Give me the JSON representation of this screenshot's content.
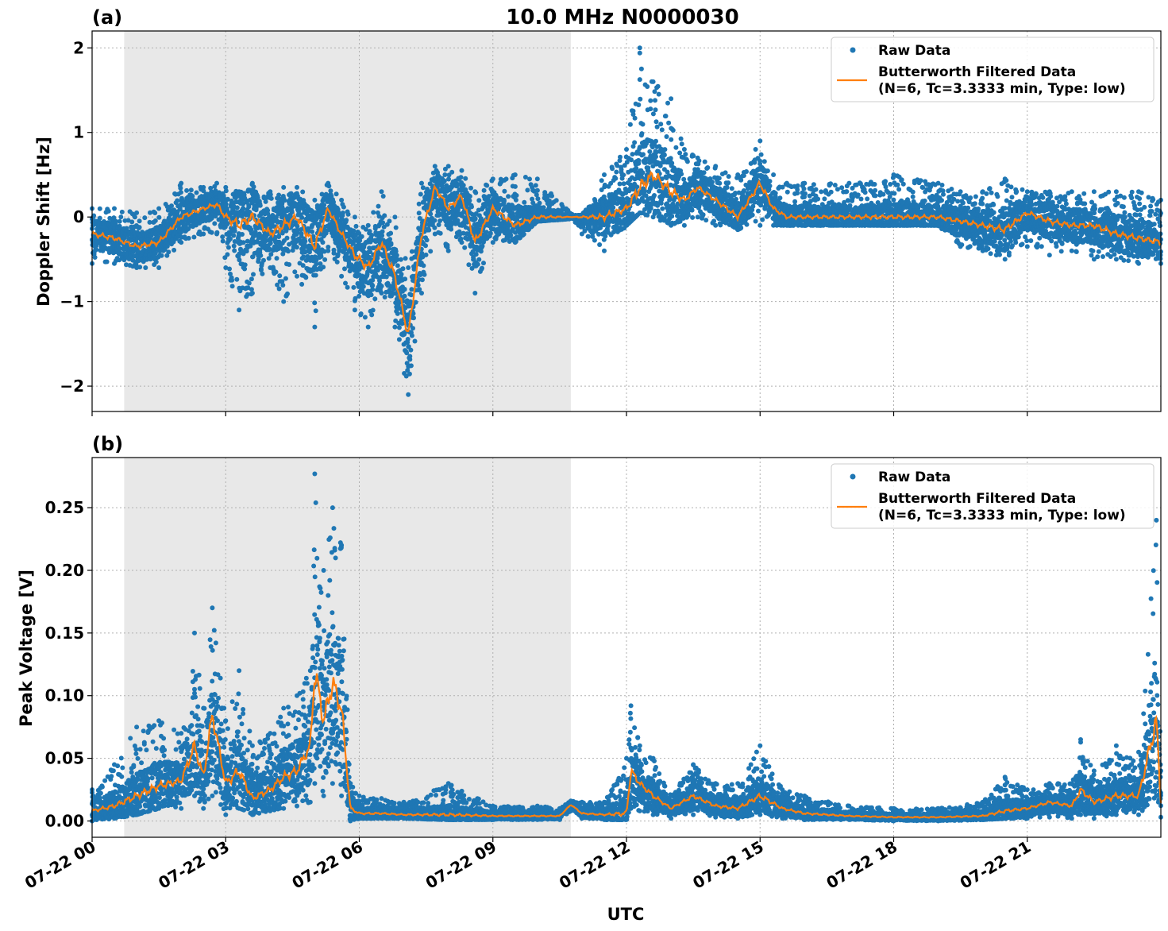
{
  "figure": {
    "title": "10.0 MHz N0000030",
    "xlabel": "UTC",
    "shaded_interval_hours": [
      0.72,
      10.75
    ]
  },
  "legend": {
    "raw_label": "Raw Data",
    "filtered_label_line1": "Butterworth Filtered Data",
    "filtered_label_line2": "(N=6, Tc=3.3333 min, Type: low)"
  },
  "colors": {
    "raw": "#1f77b4",
    "filtered": "#ff7f0e",
    "shade": "#e8e8e8",
    "grid": "#b0b0b0"
  },
  "chart_data": [
    {
      "type": "scatter",
      "panel_label": "(a)",
      "ylabel": "Doppler Shift [Hz]",
      "xlim_hours": [
        0,
        24
      ],
      "ylim": [
        -2.3,
        2.2
      ],
      "yticks": [
        2,
        1,
        0,
        -1,
        -2
      ],
      "ytick_labels": [
        "2",
        "1",
        "0",
        "−1",
        "−2"
      ],
      "grid": true,
      "legend_position": "top-right",
      "series": [
        {
          "name": "Raw Data",
          "style": "points"
        },
        {
          "name": "Butterworth Filtered Data (N=6, Tc=3.3333 min, Type: low)",
          "style": "line",
          "x": [
            0,
            0.5,
            1,
            1.5,
            2,
            2.5,
            2.8,
            3,
            3.3,
            3.6,
            4,
            4.3,
            4.6,
            5,
            5.3,
            5.6,
            5.9,
            6.2,
            6.5,
            6.8,
            7.1,
            7.4,
            7.7,
            8,
            8.3,
            8.6,
            9,
            9.5,
            10,
            10.8,
            11.5,
            12,
            12.3,
            12.6,
            13,
            13.3,
            13.6,
            14,
            14.5,
            15,
            15.3,
            15.6,
            16,
            17,
            18,
            19,
            19.5,
            20,
            20.5,
            21,
            21.5,
            22,
            22.5,
            23,
            23.5,
            24
          ],
          "y": [
            -0.2,
            -0.25,
            -0.35,
            -0.3,
            0.0,
            0.1,
            0.15,
            0.0,
            -0.1,
            0.0,
            -0.2,
            -0.1,
            0.0,
            -0.35,
            0.1,
            -0.2,
            -0.45,
            -0.6,
            -0.3,
            -0.7,
            -1.4,
            -0.2,
            0.35,
            0.1,
            0.25,
            -0.3,
            0.1,
            -0.1,
            0.0,
            0.0,
            0.0,
            0.1,
            0.35,
            0.5,
            0.3,
            0.2,
            0.35,
            0.2,
            0.0,
            0.4,
            0.1,
            0.0,
            0.0,
            0.0,
            0.0,
            0.0,
            -0.05,
            -0.1,
            -0.15,
            0.05,
            -0.05,
            -0.1,
            -0.1,
            -0.2,
            -0.25,
            -0.3
          ]
        }
      ],
      "raw_spread": {
        "x": [
          0,
          0.5,
          1,
          1.5,
          2,
          2.5,
          2.8,
          3,
          3.3,
          3.6,
          4,
          4.3,
          4.6,
          5,
          5.3,
          5.6,
          5.9,
          6.2,
          6.5,
          6.8,
          7.1,
          7.4,
          7.7,
          8,
          8.3,
          8.6,
          9,
          9.5,
          10,
          10.8,
          11,
          11.5,
          12,
          12.3,
          12.6,
          13,
          13.3,
          13.6,
          14,
          14.5,
          14.9,
          15,
          15.3,
          15.6,
          16,
          17,
          18,
          19,
          19.5,
          20,
          20.5,
          21,
          21.5,
          22,
          22.5,
          23,
          23.5,
          24
        ],
        "low": [
          -0.55,
          -0.55,
          -0.6,
          -0.6,
          -0.3,
          -0.2,
          -0.2,
          -0.6,
          -1.1,
          -0.9,
          -0.6,
          -1.0,
          -0.7,
          -1.3,
          -0.4,
          -0.7,
          -1.1,
          -1.3,
          -0.9,
          -1.3,
          -2.1,
          -0.9,
          -0.2,
          -0.4,
          -0.3,
          -0.9,
          -0.3,
          -0.3,
          -0.05,
          -0.02,
          -0.2,
          -0.4,
          -0.1,
          0.05,
          0.0,
          -0.1,
          -0.1,
          0.0,
          -0.1,
          -0.15,
          -0.05,
          -0.1,
          -0.1,
          -0.1,
          -0.1,
          -0.1,
          -0.1,
          -0.1,
          -0.35,
          -0.4,
          -0.5,
          -0.35,
          -0.45,
          -0.4,
          -0.5,
          -0.5,
          -0.55,
          -0.55
        ],
        "high": [
          0.1,
          0.1,
          0.05,
          0.1,
          0.4,
          0.35,
          0.4,
          0.35,
          0.3,
          0.4,
          0.3,
          0.35,
          0.35,
          0.2,
          0.4,
          0.2,
          0.0,
          -0.1,
          0.3,
          0.0,
          -0.6,
          0.4,
          0.6,
          0.6,
          0.55,
          0.3,
          0.45,
          0.5,
          0.45,
          0.02,
          0.02,
          0.5,
          0.8,
          2.0,
          1.6,
          1.4,
          0.8,
          0.7,
          0.6,
          0.5,
          0.8,
          0.9,
          0.5,
          0.4,
          0.4,
          0.4,
          0.5,
          0.4,
          0.3,
          0.3,
          0.45,
          0.3,
          0.3,
          0.3,
          0.3,
          0.3,
          0.3,
          0.2
        ]
      }
    },
    {
      "type": "scatter",
      "panel_label": "(b)",
      "ylabel": "Peak Voltage [V]",
      "xlim_hours": [
        0,
        24
      ],
      "ylim": [
        -0.013,
        0.29
      ],
      "yticks": [
        0.25,
        0.2,
        0.15,
        0.1,
        0.05,
        0.0
      ],
      "ytick_labels": [
        "0.25",
        "0.20",
        "0.15",
        "0.10",
        "0.05",
        "0.00"
      ],
      "grid": true,
      "legend_position": "top-right",
      "series": [
        {
          "name": "Raw Data",
          "style": "points"
        },
        {
          "name": "Butterworth Filtered Data (N=6, Tc=3.3333 min, Type: low)",
          "style": "line",
          "x": [
            0,
            0.5,
            1,
            1.5,
            2,
            2.3,
            2.5,
            2.7,
            3,
            3.3,
            3.6,
            4,
            4.3,
            4.6,
            4.9,
            5,
            5.2,
            5.4,
            5.6,
            5.8,
            6,
            6.5,
            7,
            8,
            9,
            10,
            10.5,
            10.75,
            11,
            11.5,
            12,
            12.1,
            12.3,
            12.6,
            13,
            13.5,
            14,
            14.5,
            15,
            15.5,
            16,
            17,
            18,
            19,
            20,
            20.5,
            21,
            21.5,
            22,
            22.2,
            22.5,
            23,
            23.5,
            23.9,
            24
          ],
          "y": [
            0.008,
            0.012,
            0.02,
            0.028,
            0.032,
            0.06,
            0.035,
            0.085,
            0.03,
            0.04,
            0.018,
            0.025,
            0.035,
            0.04,
            0.06,
            0.12,
            0.08,
            0.11,
            0.09,
            0.01,
            0.006,
            0.006,
            0.005,
            0.005,
            0.004,
            0.004,
            0.004,
            0.013,
            0.006,
            0.005,
            0.006,
            0.04,
            0.03,
            0.02,
            0.01,
            0.02,
            0.012,
            0.01,
            0.02,
            0.01,
            0.006,
            0.004,
            0.003,
            0.003,
            0.004,
            0.008,
            0.01,
            0.015,
            0.012,
            0.025,
            0.015,
            0.02,
            0.02,
            0.08,
            0.015
          ]
        }
      ],
      "raw_spread": {
        "x": [
          0,
          0.5,
          1,
          1.5,
          2,
          2.3,
          2.5,
          2.7,
          3,
          3.3,
          3.6,
          4,
          4.3,
          4.6,
          4.9,
          5,
          5.2,
          5.4,
          5.6,
          5.8,
          6,
          6.5,
          7,
          8,
          9,
          10,
          10.5,
          10.75,
          11,
          11.5,
          12,
          12.1,
          12.3,
          12.6,
          13,
          13.5,
          14,
          14.5,
          15,
          15.5,
          16,
          17,
          18,
          19,
          20,
          20.5,
          21,
          21.5,
          22,
          22.2,
          22.5,
          23,
          23.5,
          23.9,
          24
        ],
        "low": [
          0.0,
          0.002,
          0.005,
          0.01,
          0.01,
          0.02,
          0.01,
          0.02,
          0.005,
          0.01,
          0.005,
          0.008,
          0.01,
          0.012,
          0.015,
          0.03,
          0.02,
          0.03,
          0.02,
          0.0,
          0.002,
          0.002,
          0.002,
          0.001,
          0.001,
          0.001,
          0.001,
          0.008,
          0.002,
          0.001,
          0.001,
          0.01,
          0.008,
          0.005,
          0.002,
          0.005,
          0.003,
          0.002,
          0.005,
          0.002,
          0.001,
          0.001,
          0.0,
          0.0,
          0.001,
          0.002,
          0.002,
          0.003,
          0.002,
          0.005,
          0.002,
          0.005,
          0.005,
          0.02,
          0.003
        ],
        "high": [
          0.025,
          0.045,
          0.075,
          0.08,
          0.07,
          0.15,
          0.09,
          0.17,
          0.08,
          0.12,
          0.06,
          0.07,
          0.09,
          0.1,
          0.12,
          0.277,
          0.2,
          0.25,
          0.22,
          0.03,
          0.02,
          0.018,
          0.015,
          0.03,
          0.012,
          0.012,
          0.01,
          0.016,
          0.015,
          0.015,
          0.05,
          0.092,
          0.06,
          0.05,
          0.02,
          0.045,
          0.03,
          0.03,
          0.06,
          0.025,
          0.02,
          0.012,
          0.01,
          0.01,
          0.015,
          0.035,
          0.025,
          0.03,
          0.03,
          0.065,
          0.04,
          0.06,
          0.055,
          0.24,
          0.04
        ]
      }
    }
  ],
  "x_axis": {
    "tick_hours": [
      0,
      3,
      6,
      9,
      12,
      15,
      18,
      21
    ],
    "tick_labels": [
      "07-22 00",
      "07-22 03",
      "07-22 06",
      "07-22 09",
      "07-22 12",
      "07-22 15",
      "07-22 18",
      "07-22 21"
    ]
  }
}
